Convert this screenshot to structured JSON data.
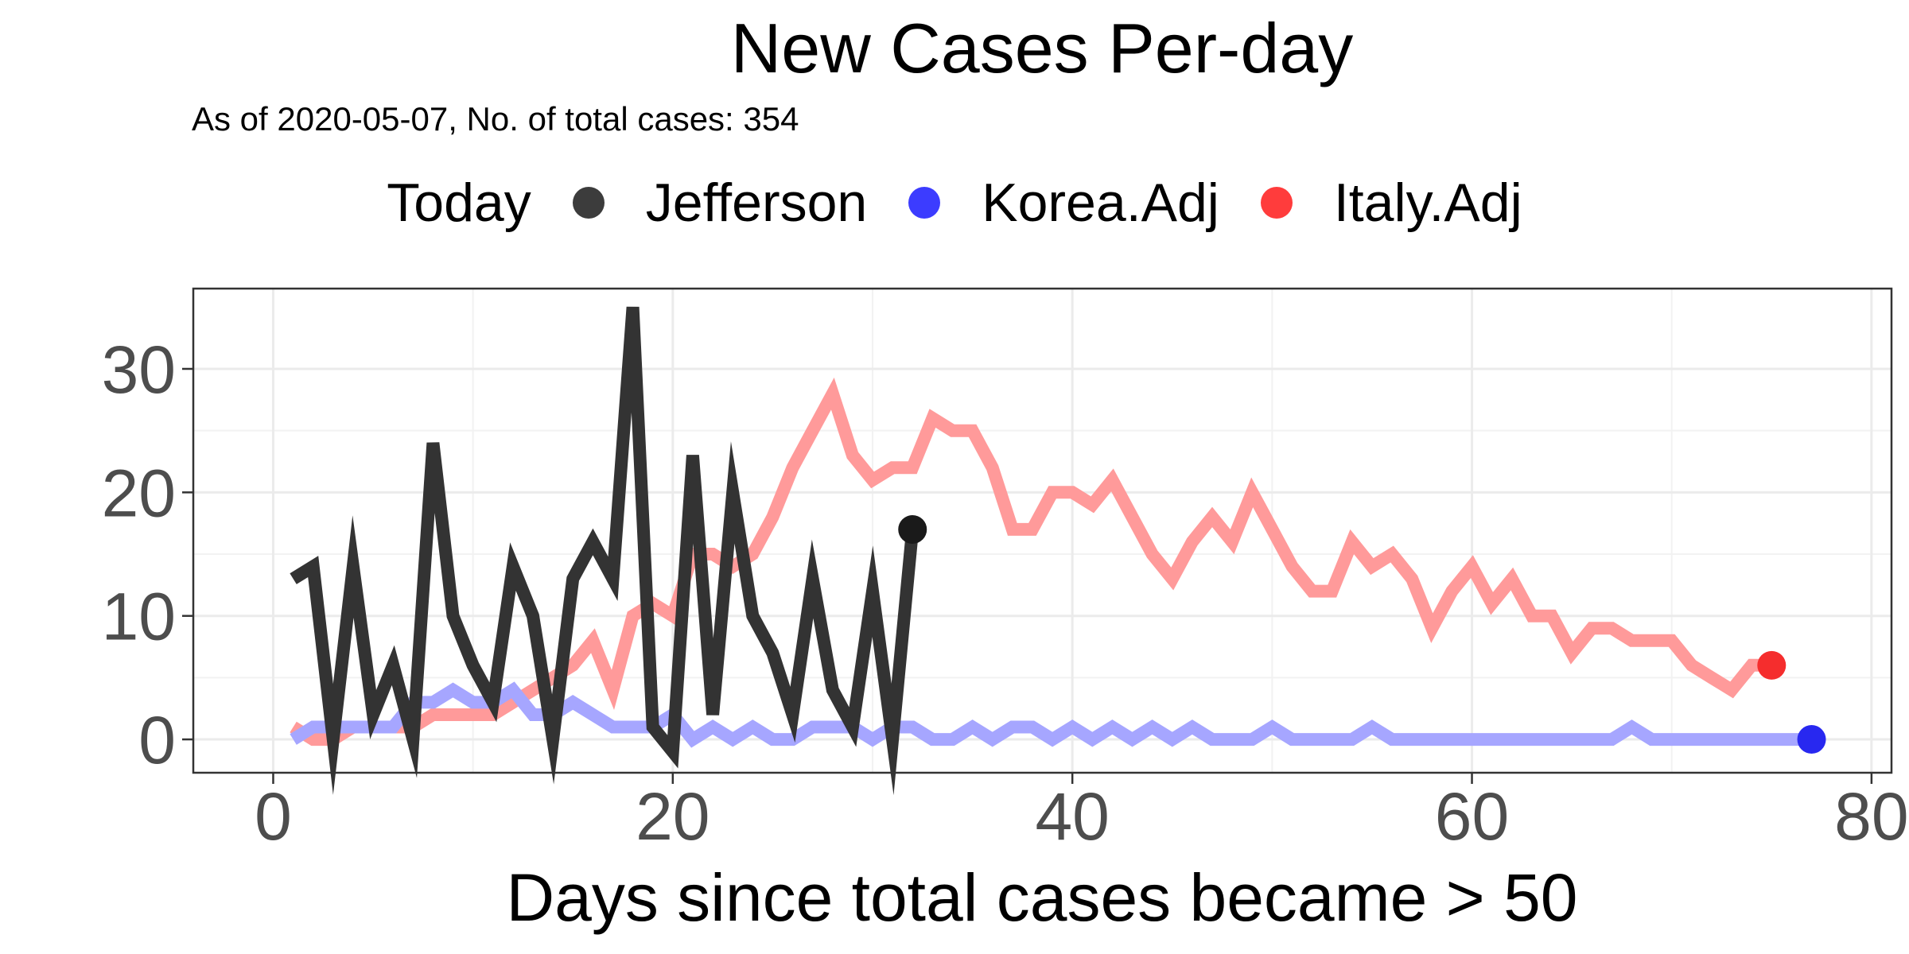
{
  "chart_data": {
    "type": "line",
    "title": "New Cases Per-day",
    "subtitle": "As of 2020-05-07, No. of total cases: 354",
    "xlabel": "Days since total cases became > 50",
    "ylabel": "",
    "xlim": [
      -4,
      81
    ],
    "ylim": [
      -2.7,
      36.5
    ],
    "xticks": [
      0,
      20,
      40,
      60,
      80
    ],
    "yticks": [
      0,
      10,
      20,
      30
    ],
    "grid": true,
    "legend": {
      "title": "Today",
      "placement": "top",
      "items": [
        {
          "label": "Jefferson",
          "color": "#1a1a1a"
        },
        {
          "label": "Korea.Adj",
          "color": "#1a1aff"
        },
        {
          "label": "Italy.Adj",
          "color": "#ff1a1a"
        }
      ]
    },
    "series": [
      {
        "name": "Italy.Adj",
        "color": "#ff9a9a",
        "endpoint_color": "#f52d2d",
        "x": [
          1,
          2,
          3,
          4,
          5,
          6,
          7,
          8,
          9,
          10,
          11,
          12,
          13,
          14,
          15,
          16,
          17,
          18,
          19,
          20,
          21,
          22,
          23,
          24,
          25,
          26,
          27,
          28,
          29,
          30,
          31,
          32,
          33,
          34,
          35,
          36,
          37,
          38,
          39,
          40,
          41,
          42,
          43,
          44,
          45,
          46,
          47,
          48,
          49,
          50,
          51,
          52,
          53,
          54,
          55,
          56,
          57,
          58,
          59,
          60,
          61,
          62,
          63,
          64,
          65,
          66,
          67,
          68,
          69,
          70,
          71,
          72,
          73,
          74,
          75
        ],
        "y": [
          1,
          0,
          0,
          1,
          1,
          1,
          1,
          2,
          2,
          2,
          2,
          3,
          4,
          5,
          6,
          8,
          4,
          10,
          11,
          10,
          15,
          15,
          14,
          15,
          18,
          22,
          25,
          28,
          23,
          21,
          22,
          22,
          26,
          25,
          25,
          22,
          17,
          17,
          20,
          20,
          19,
          21,
          18,
          15,
          13,
          16,
          18,
          16,
          20,
          17,
          14,
          12,
          12,
          16,
          14,
          15,
          13,
          9,
          12,
          14,
          11,
          13,
          10,
          10,
          7,
          9,
          9,
          8,
          8,
          8,
          6,
          5,
          4,
          6,
          6
        ]
      },
      {
        "name": "Korea.Adj",
        "color": "#a6a6ff",
        "endpoint_color": "#2828f0",
        "x": [
          1,
          2,
          3,
          4,
          5,
          6,
          7,
          8,
          9,
          10,
          11,
          12,
          13,
          14,
          15,
          16,
          17,
          18,
          19,
          20,
          21,
          22,
          23,
          24,
          25,
          26,
          27,
          28,
          29,
          30,
          31,
          32,
          33,
          34,
          35,
          36,
          37,
          38,
          39,
          40,
          41,
          42,
          43,
          44,
          45,
          46,
          47,
          48,
          49,
          50,
          51,
          52,
          53,
          54,
          55,
          56,
          57,
          58,
          59,
          60,
          61,
          62,
          63,
          64,
          65,
          66,
          67,
          68,
          69,
          70,
          71,
          72,
          73,
          74,
          75,
          76,
          77
        ],
        "y": [
          0,
          1,
          1,
          1,
          1,
          1,
          3,
          3,
          4,
          3,
          3,
          4,
          2,
          2,
          3,
          2,
          1,
          1,
          1,
          2,
          0,
          1,
          0,
          1,
          0,
          0,
          1,
          1,
          1,
          0,
          1,
          1,
          0,
          0,
          1,
          0,
          1,
          1,
          0,
          1,
          0,
          1,
          0,
          1,
          0,
          1,
          0,
          0,
          0,
          1,
          0,
          0,
          0,
          0,
          1,
          0,
          0,
          0,
          0,
          0,
          0,
          0,
          0,
          0,
          0,
          0,
          0,
          1,
          0,
          0,
          0,
          0,
          0,
          0,
          0,
          0,
          0
        ]
      },
      {
        "name": "Jefferson",
        "color": "#333333",
        "endpoint_color": "#1a1a1a",
        "x": [
          1,
          2,
          3,
          4,
          5,
          6,
          7,
          8,
          9,
          10,
          11,
          12,
          13,
          14,
          15,
          16,
          17,
          18,
          19,
          20,
          21,
          22,
          23,
          24,
          25,
          26,
          27,
          28,
          29,
          30,
          31,
          32
        ],
        "y": [
          13,
          14,
          0,
          14,
          2,
          6,
          0,
          24,
          10,
          6,
          3,
          14,
          10,
          0,
          13,
          16,
          13,
          35,
          1,
          -1,
          23,
          2,
          20,
          10,
          7,
          2,
          13,
          4,
          1,
          12,
          0,
          17
        ]
      }
    ]
  }
}
